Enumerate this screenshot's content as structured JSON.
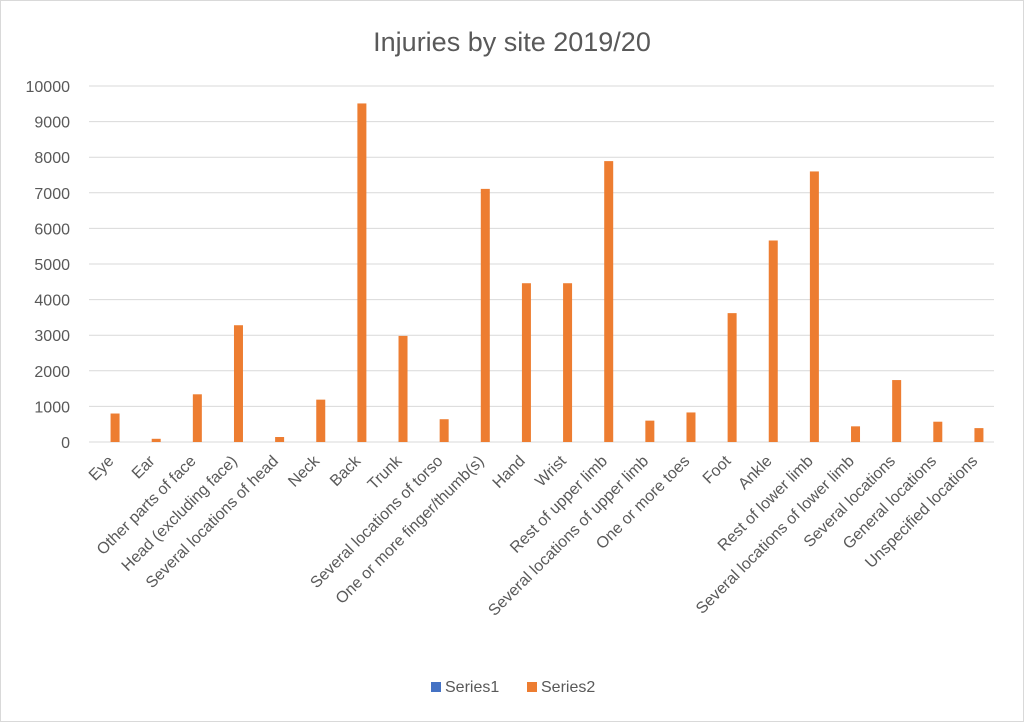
{
  "chart_data": {
    "type": "bar",
    "title": "Injuries by site 2019/20",
    "xlabel": "",
    "ylabel": "",
    "ylim": [
      0,
      10000
    ],
    "yticks": [
      0,
      1000,
      2000,
      3000,
      4000,
      5000,
      6000,
      7000,
      8000,
      9000,
      10000
    ],
    "grid": true,
    "legend_position": "bottom",
    "categories": [
      "Eye",
      "Ear",
      "Other parts of face",
      "Head (excluding face)",
      "Several locations of head",
      "Neck",
      "Back",
      "Trunk",
      "Several locations of torso",
      "One or more finger/thumb(s)",
      "Hand",
      "Wrist",
      "Rest of upper limb",
      "Several locations of upper limb",
      "One or more toes",
      "Foot",
      "Ankle",
      "Rest of lower limb",
      "Several locations of lower limb",
      "Several locations",
      "General locations",
      "Unspecified locations"
    ],
    "series": [
      {
        "name": "Series1",
        "color": "#4472C4",
        "values": [
          0,
          0,
          0,
          0,
          0,
          0,
          0,
          0,
          0,
          0,
          0,
          0,
          0,
          0,
          0,
          0,
          0,
          0,
          0,
          0,
          0,
          0
        ]
      },
      {
        "name": "Series2",
        "color": "#ED7D31",
        "values": [
          800,
          90,
          1340,
          3280,
          140,
          1190,
          9510,
          2980,
          640,
          7110,
          4460,
          4460,
          7890,
          600,
          830,
          3620,
          5660,
          7600,
          440,
          1740,
          570,
          390
        ]
      }
    ]
  }
}
